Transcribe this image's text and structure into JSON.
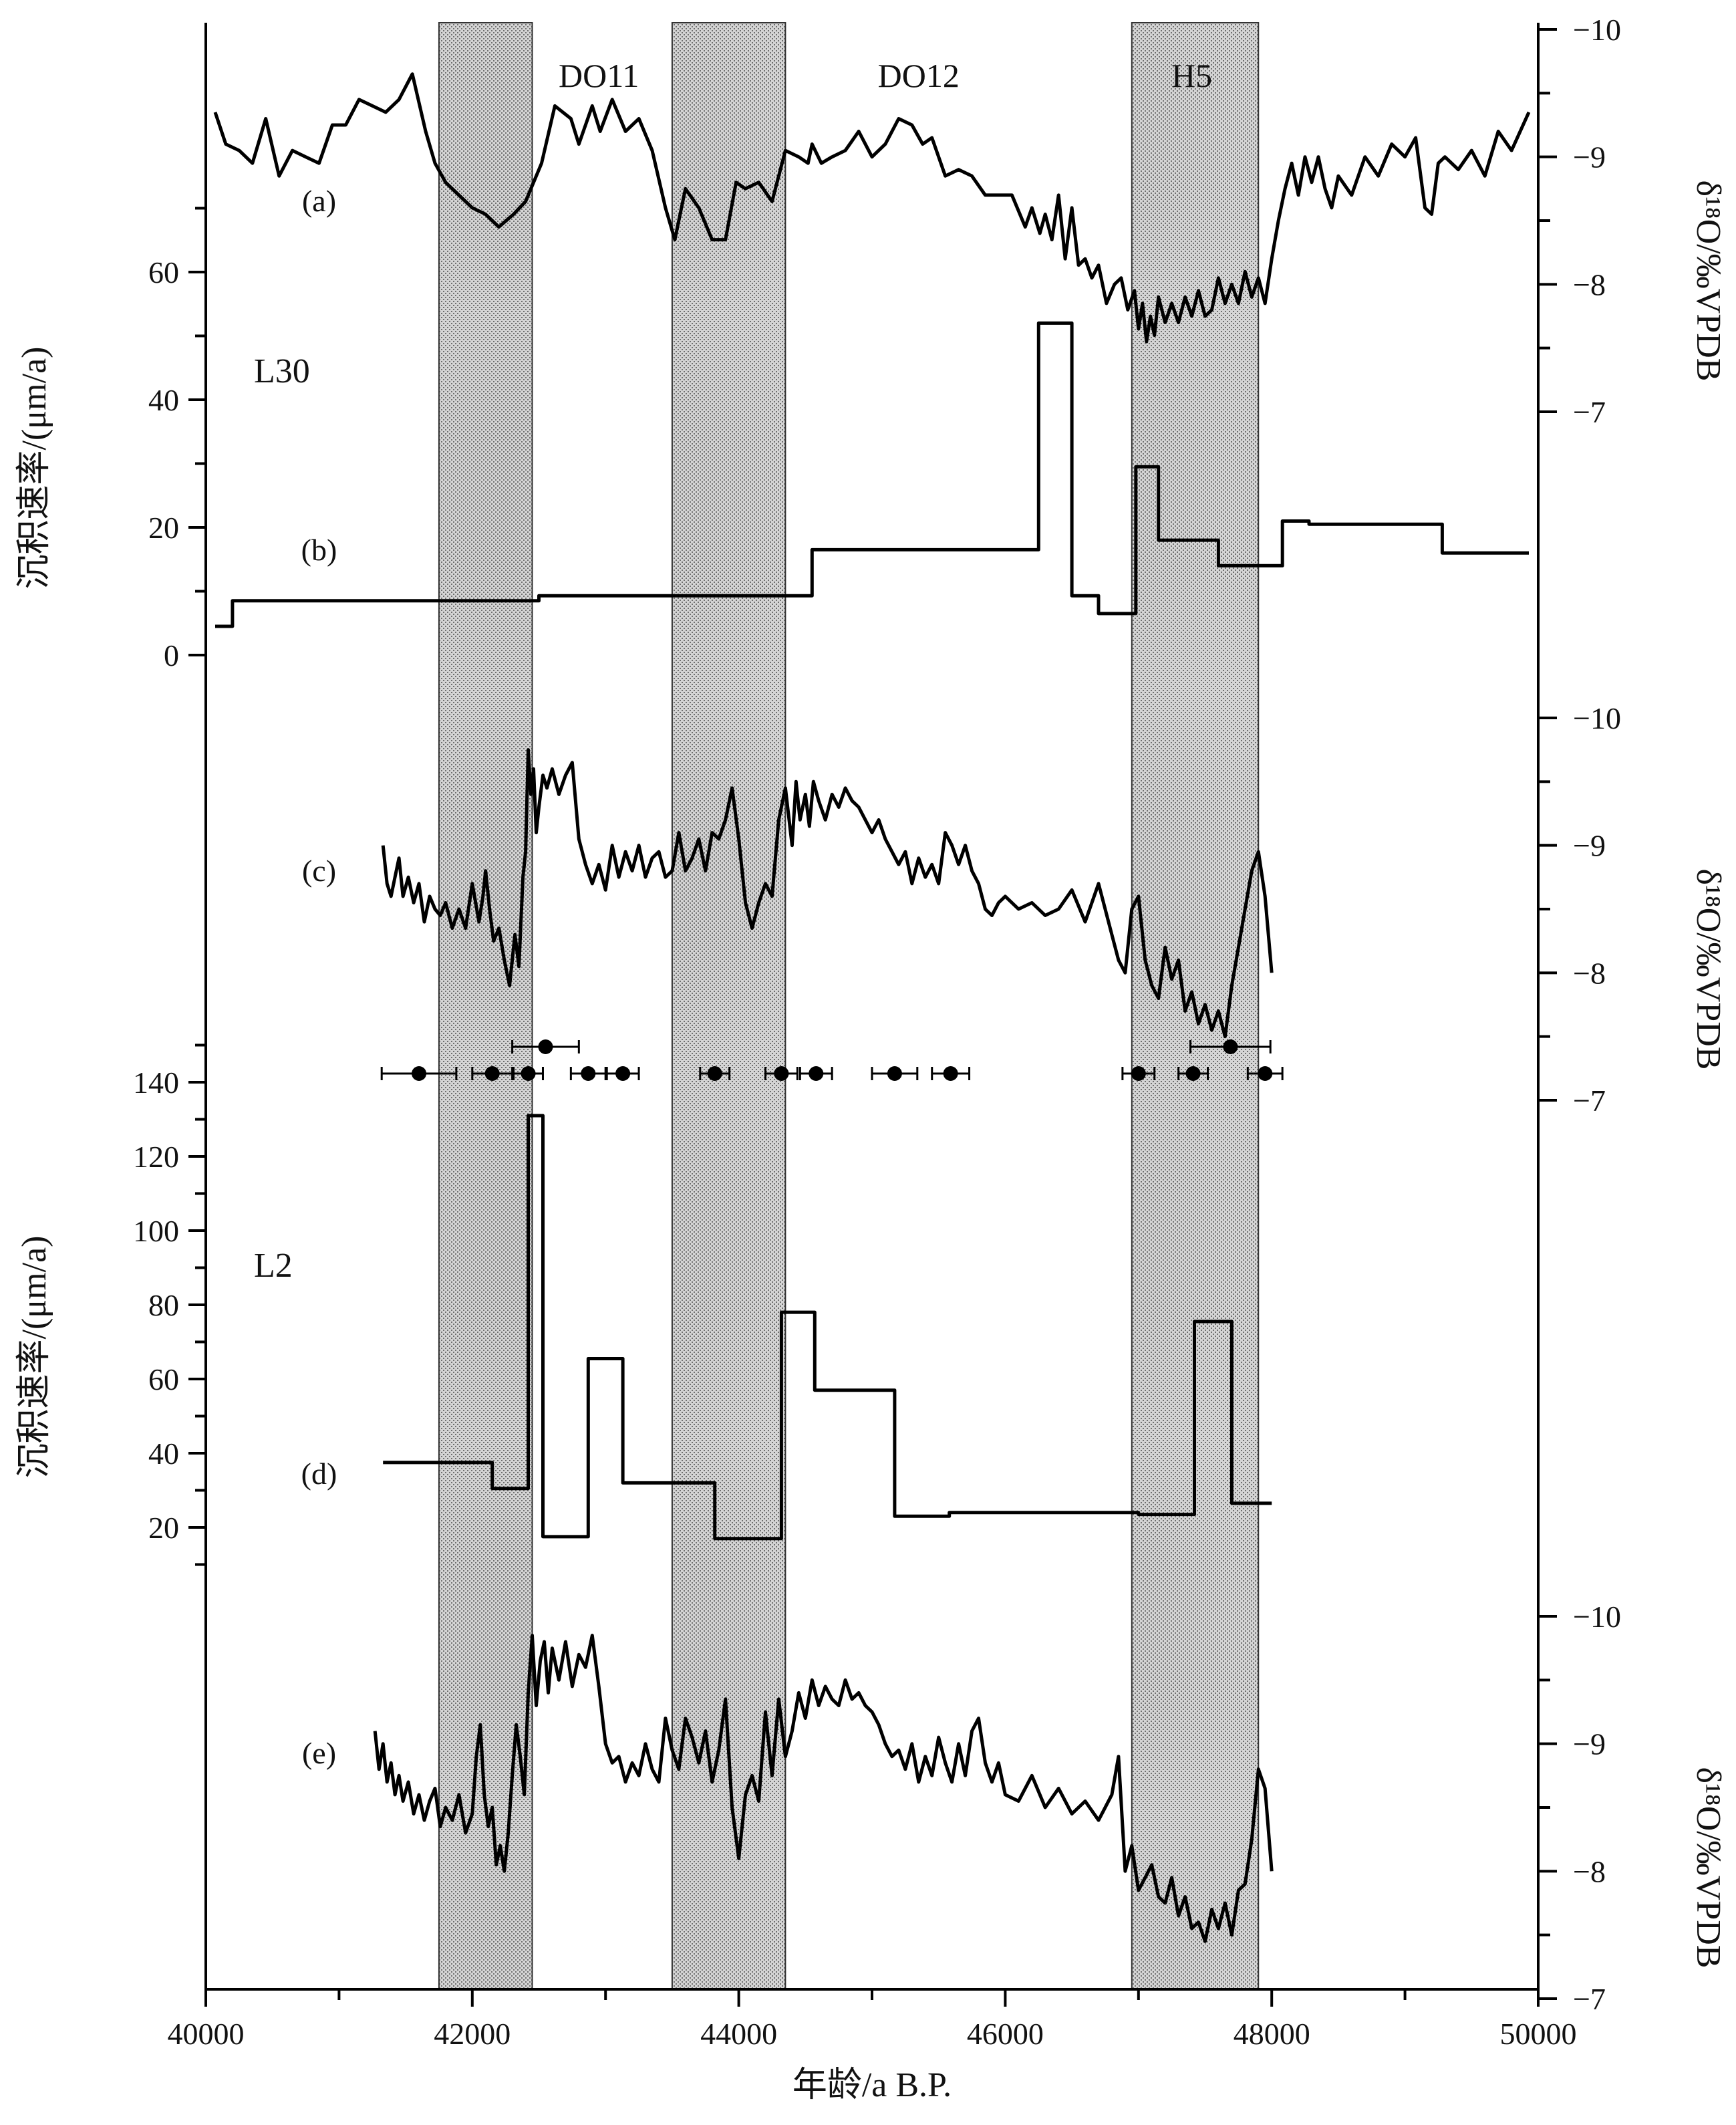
{
  "chart_data": {
    "type": "line",
    "xlabel": "年龄/a B.P.",
    "xlim": [
      40000,
      50000
    ],
    "x_ticks": [
      "40000",
      "42000",
      "44000",
      "46000",
      "48000",
      "50000"
    ],
    "left_axis_title_top": "沉积速率/(μm/a)",
    "left_axis_title_bottom": "沉积速率/(μm/a)",
    "right_axis_title": "δ¹⁸O/‰VPDB",
    "right_axis_sup": "18",
    "left_top_ticks": [
      "0",
      "20",
      "40",
      "60"
    ],
    "left_bottom_ticks": [
      "20",
      "40",
      "60",
      "80",
      "100",
      "120",
      "140"
    ],
    "right_ticks": [
      "−10",
      "−9",
      "−8",
      "−7"
    ],
    "site_labels": [
      "L30",
      "L2"
    ],
    "panel_labels": [
      "(a)",
      "(b)",
      "(c)",
      "(d)",
      "(e)"
    ],
    "shaded_bands": [
      {
        "label": "",
        "x": [
          41750,
          42450
        ]
      },
      {
        "label": "",
        "x": [
          43500,
          44350
        ]
      },
      {
        "label": "H5",
        "x": [
          46950,
          47900
        ]
      }
    ],
    "interval_labels": [
      {
        "label": "DO11",
        "x": 42950
      },
      {
        "label": "DO12",
        "x": 45350
      },
      {
        "label": "H5",
        "x": 47400
      }
    ],
    "series": [
      {
        "id": "a",
        "kind": "d18O",
        "ylim": [
          -10,
          -7
        ],
        "x": [
          40070,
          40150,
          40250,
          40350,
          40450,
          40550,
          40650,
          40750,
          40850,
          40950,
          41050,
          41150,
          41250,
          41350,
          41450,
          41550,
          41650,
          41720,
          41800,
          41900,
          42000,
          42100,
          42200,
          42310,
          42400,
          42520,
          42620,
          42740,
          42800,
          42900,
          42960,
          43050,
          43150,
          43250,
          43350,
          43450,
          43520,
          43600,
          43700,
          43800,
          43900,
          43980,
          44050,
          44150,
          44250,
          44350,
          44450,
          44520,
          44550,
          44620,
          44700,
          44800,
          44900,
          45000,
          45100,
          45200,
          45300,
          45380,
          45450,
          45550,
          45650,
          45750,
          45850,
          45950,
          46050,
          46150,
          46200,
          46260,
          46300,
          46350,
          46400,
          46450,
          46500,
          46550,
          46600,
          46650,
          46700,
          46760,
          46820,
          46870,
          46920,
          46970,
          47000,
          47030,
          47060,
          47090,
          47120,
          47150,
          47200,
          47250,
          47300,
          47350,
          47400,
          47450,
          47500,
          47550,
          47600,
          47650,
          47700,
          47750,
          47800,
          47850,
          47900,
          47950,
          48000,
          48050,
          48100,
          48150,
          48200,
          48250,
          48300,
          48350,
          48400,
          48450,
          48500,
          48600,
          48700,
          48800,
          48900,
          49000,
          49080,
          49150,
          49200,
          49250,
          49300,
          49400,
          49500,
          49600,
          49700,
          49800,
          49930
        ],
        "y": [
          -9.35,
          -9.1,
          -9.05,
          -8.95,
          -9.3,
          -8.85,
          -9.05,
          -9.0,
          -8.95,
          -9.25,
          -9.25,
          -9.45,
          -9.4,
          -9.35,
          -9.45,
          -9.65,
          -9.2,
          -8.95,
          -8.8,
          -8.7,
          -8.6,
          -8.55,
          -8.45,
          -8.55,
          -8.65,
          -8.95,
          -9.4,
          -9.3,
          -9.1,
          -9.4,
          -9.2,
          -9.45,
          -9.2,
          -9.3,
          -9.05,
          -8.6,
          -8.35,
          -8.75,
          -8.6,
          -8.35,
          -8.35,
          -8.8,
          -8.75,
          -8.8,
          -8.65,
          -9.05,
          -9.0,
          -8.95,
          -9.1,
          -8.95,
          -9.0,
          -9.05,
          -9.2,
          -9.0,
          -9.1,
          -9.3,
          -9.25,
          -9.1,
          -9.15,
          -8.85,
          -8.9,
          -8.85,
          -8.7,
          -8.7,
          -8.7,
          -8.45,
          -8.6,
          -8.4,
          -8.55,
          -8.35,
          -8.7,
          -8.2,
          -8.6,
          -8.15,
          -8.2,
          -8.05,
          -8.15,
          -7.85,
          -8.0,
          -8.05,
          -7.8,
          -7.95,
          -7.65,
          -7.85,
          -7.55,
          -7.75,
          -7.6,
          -7.9,
          -7.7,
          -7.85,
          -7.7,
          -7.9,
          -7.75,
          -7.95,
          -7.75,
          -7.8,
          -8.05,
          -7.85,
          -8.0,
          -7.85,
          -8.1,
          -7.9,
          -8.05,
          -7.85,
          -8.2,
          -8.5,
          -8.75,
          -8.95,
          -8.7,
          -9.0,
          -8.8,
          -9.0,
          -8.75,
          -8.6,
          -8.85,
          -8.7,
          -9.0,
          -8.85,
          -9.1,
          -9.0,
          -9.15,
          -8.6,
          -8.55,
          -8.95,
          -9.0,
          -8.9,
          -9.05,
          -8.85,
          -9.2,
          -9.05,
          -9.35
        ],
        "label_x": 40850,
        "label_y": -8.65
      },
      {
        "id": "b",
        "kind": "rate",
        "ylim": [
          0,
          60
        ],
        "step": true,
        "x": [
          40070,
          40200,
          40200,
          42500,
          42500,
          44550,
          44550,
          46250,
          46250,
          46500,
          46500,
          46700,
          46700,
          46980,
          46980,
          47150,
          47150,
          47600,
          47600,
          48080,
          48080,
          48280,
          48280,
          49280,
          49280,
          49930
        ],
        "y": [
          4.5,
          4.5,
          8.5,
          8.5,
          9.3,
          9.3,
          16.5,
          16.5,
          52,
          52,
          9.3,
          9.3,
          6.5,
          6.5,
          29.5,
          29.5,
          18,
          18,
          14,
          14,
          21,
          21,
          20.5,
          20.5,
          16,
          16
        ],
        "label_x": 40850,
        "label_y": 16.5
      },
      {
        "id": "c",
        "kind": "d18O",
        "ylim": [
          -10,
          -7
        ],
        "x": [
          41330,
          41360,
          41390,
          41420,
          41450,
          41480,
          41520,
          41560,
          41600,
          41640,
          41680,
          41720,
          41760,
          41800,
          41850,
          41900,
          41950,
          42000,
          42050,
          42080,
          42100,
          42130,
          42160,
          42200,
          42240,
          42280,
          42320,
          42350,
          42380,
          42400,
          42420,
          42440,
          42460,
          42480,
          42500,
          42530,
          42560,
          42600,
          42650,
          42700,
          42750,
          42800,
          42850,
          42900,
          42950,
          43000,
          43050,
          43100,
          43150,
          43200,
          43250,
          43300,
          43350,
          43400,
          43450,
          43500,
          43550,
          43600,
          43650,
          43700,
          43750,
          43800,
          43850,
          43900,
          43950,
          44000,
          44050,
          44100,
          44150,
          44200,
          44250,
          44300,
          44350,
          44400,
          44430,
          44460,
          44500,
          44530,
          44560,
          44600,
          44650,
          44700,
          44750,
          44800,
          44850,
          44900,
          44950,
          45000,
          45050,
          45100,
          45150,
          45200,
          45250,
          45300,
          45350,
          45400,
          45450,
          45500,
          45550,
          45600,
          45650,
          45700,
          45750,
          45800,
          45850,
          45900,
          45950,
          46000,
          46100,
          46200,
          46300,
          46400,
          46500,
          46600,
          46700,
          46800,
          46850,
          46900,
          46950,
          47000,
          47050,
          47100,
          47150,
          47200,
          47250,
          47300,
          47350,
          47400,
          47450,
          47500,
          47550,
          47600,
          47650,
          47700,
          47750,
          47800,
          47850,
          47900,
          47950,
          48000
        ],
        "y": [
          -9.0,
          -8.7,
          -8.6,
          -8.75,
          -8.9,
          -8.6,
          -8.75,
          -8.55,
          -8.7,
          -8.4,
          -8.6,
          -8.5,
          -8.45,
          -8.55,
          -8.35,
          -8.5,
          -8.35,
          -8.7,
          -8.4,
          -8.6,
          -8.8,
          -8.5,
          -8.25,
          -8.35,
          -8.1,
          -7.9,
          -8.3,
          -8.05,
          -8.75,
          -8.95,
          -9.75,
          -9.4,
          -9.6,
          -9.1,
          -9.3,
          -9.55,
          -9.45,
          -9.6,
          -9.4,
          -9.55,
          -9.65,
          -9.05,
          -8.85,
          -8.7,
          -8.85,
          -8.65,
          -9.0,
          -8.75,
          -8.95,
          -8.8,
          -9.0,
          -8.75,
          -8.9,
          -8.95,
          -8.75,
          -8.8,
          -9.1,
          -8.8,
          -8.9,
          -9.05,
          -8.8,
          -9.1,
          -9.05,
          -9.2,
          -9.45,
          -9.05,
          -8.55,
          -8.35,
          -8.55,
          -8.7,
          -8.6,
          -9.2,
          -9.45,
          -9.0,
          -9.5,
          -9.2,
          -9.4,
          -9.15,
          -9.5,
          -9.35,
          -9.2,
          -9.4,
          -9.3,
          -9.45,
          -9.35,
          -9.3,
          -9.2,
          -9.1,
          -9.2,
          -9.05,
          -8.95,
          -8.85,
          -8.95,
          -8.7,
          -8.9,
          -8.75,
          -8.85,
          -8.7,
          -9.1,
          -9.0,
          -8.85,
          -9.0,
          -8.8,
          -8.7,
          -8.5,
          -8.45,
          -8.55,
          -8.6,
          -8.5,
          -8.55,
          -8.45,
          -8.5,
          -8.65,
          -8.4,
          -8.7,
          -8.3,
          -8.1,
          -8.0,
          -8.5,
          -8.6,
          -8.1,
          -7.9,
          -7.8,
          -8.2,
          -7.95,
          -8.1,
          -7.7,
          -7.85,
          -7.6,
          -7.75,
          -7.55,
          -7.7,
          -7.5,
          -7.9,
          -8.2,
          -8.5,
          -8.8,
          -8.95,
          -8.6,
          -8.0
        ],
        "label_x": 40850,
        "label_y": -8.75
      },
      {
        "id": "d",
        "kind": "rate",
        "ylim": [
          10,
          150
        ],
        "step": true,
        "x": [
          41330,
          42150,
          42150,
          42420,
          42420,
          42530,
          42530,
          42870,
          42870,
          43130,
          43130,
          43820,
          43820,
          44320,
          44320,
          44570,
          44570,
          45170,
          45170,
          45580,
          45580,
          47000,
          47000,
          47420,
          47420,
          47700,
          47700,
          48000
        ],
        "y": [
          37.5,
          37.5,
          30.5,
          30.5,
          131,
          131,
          17.5,
          17.5,
          65.5,
          65.5,
          32,
          32,
          17,
          17,
          78,
          78,
          57,
          57,
          23,
          23,
          24,
          24,
          23.5,
          23.5,
          75.5,
          75.5,
          26.5,
          26.5
        ],
        "label_x": 40850,
        "label_y": 33
      },
      {
        "id": "e",
        "kind": "d18O",
        "ylim": [
          -10,
          -7
        ],
        "x": [
          41270,
          41300,
          41330,
          41360,
          41390,
          41420,
          41450,
          41480,
          41520,
          41560,
          41600,
          41640,
          41680,
          41720,
          41760,
          41800,
          41850,
          41900,
          41950,
          42000,
          42030,
          42060,
          42090,
          42120,
          42150,
          42180,
          42210,
          42240,
          42270,
          42300,
          42330,
          42360,
          42390,
          42420,
          42450,
          42480,
          42510,
          42540,
          42570,
          42600,
          42650,
          42700,
          42750,
          42800,
          42850,
          42900,
          42950,
          43000,
          43050,
          43100,
          43150,
          43200,
          43250,
          43300,
          43350,
          43400,
          43450,
          43500,
          43550,
          43600,
          43650,
          43700,
          43750,
          43800,
          43850,
          43900,
          43950,
          44000,
          44050,
          44100,
          44150,
          44200,
          44250,
          44300,
          44350,
          44400,
          44450,
          44500,
          44550,
          44600,
          44650,
          44700,
          44750,
          44800,
          44850,
          44900,
          44950,
          45000,
          45050,
          45100,
          45150,
          45200,
          45250,
          45300,
          45350,
          45400,
          45450,
          45500,
          45550,
          45600,
          45650,
          45700,
          45750,
          45800,
          45850,
          45900,
          45950,
          46000,
          46100,
          46200,
          46300,
          46400,
          46500,
          46600,
          46700,
          46800,
          46850,
          46900,
          46950,
          47000,
          47050,
          47100,
          47150,
          47200,
          47250,
          47300,
          47350,
          47400,
          47450,
          47500,
          47550,
          47600,
          47650,
          47700,
          47750,
          47800,
          47850,
          47900,
          47950,
          48000
        ],
        "y": [
          -9.1,
          -8.8,
          -9.0,
          -8.7,
          -8.85,
          -8.6,
          -8.75,
          -8.55,
          -8.7,
          -8.45,
          -8.6,
          -8.4,
          -8.55,
          -8.65,
          -8.35,
          -8.5,
          -8.4,
          -8.6,
          -8.3,
          -8.45,
          -8.9,
          -9.15,
          -8.6,
          -8.35,
          -8.5,
          -8.05,
          -8.2,
          -8.0,
          -8.3,
          -8.75,
          -9.15,
          -8.9,
          -8.6,
          -9.4,
          -9.85,
          -9.3,
          -9.65,
          -9.8,
          -9.4,
          -9.75,
          -9.5,
          -9.8,
          -9.45,
          -9.7,
          -9.6,
          -9.85,
          -9.45,
          -9.0,
          -8.85,
          -8.9,
          -8.7,
          -8.85,
          -8.75,
          -9.0,
          -8.8,
          -8.7,
          -9.2,
          -8.95,
          -8.8,
          -9.2,
          -9.05,
          -8.85,
          -9.1,
          -8.7,
          -8.95,
          -9.35,
          -8.5,
          -8.1,
          -8.6,
          -8.75,
          -8.55,
          -9.25,
          -8.75,
          -9.35,
          -8.9,
          -9.1,
          -9.4,
          -9.2,
          -9.5,
          -9.3,
          -9.45,
          -9.35,
          -9.3,
          -9.5,
          -9.35,
          -9.4,
          -9.3,
          -9.25,
          -9.15,
          -9.0,
          -8.9,
          -8.95,
          -8.8,
          -9.0,
          -8.7,
          -8.9,
          -8.75,
          -9.05,
          -8.85,
          -8.7,
          -9.0,
          -8.75,
          -9.1,
          -9.2,
          -8.85,
          -8.7,
          -8.85,
          -8.6,
          -8.55,
          -8.75,
          -8.5,
          -8.65,
          -8.45,
          -8.55,
          -8.4,
          -8.6,
          -8.9,
          -8.0,
          -8.2,
          -7.85,
          -7.95,
          -8.05,
          -7.8,
          -7.75,
          -7.95,
          -7.65,
          -7.8,
          -7.55,
          -7.6,
          -7.45,
          -7.7,
          -7.55,
          -7.75,
          -7.5,
          -7.85,
          -7.9,
          -8.25,
          -8.8,
          -8.65,
          -8.0
        ],
        "label_x": 40850,
        "label_y": -8.95
      }
    ],
    "age_points": [
      {
        "x": 41600,
        "err": 280,
        "row": 1
      },
      {
        "x": 42150,
        "err": 150,
        "row": 1
      },
      {
        "x": 42420,
        "err": 110,
        "row": 1
      },
      {
        "x": 42550,
        "err": 250,
        "row": 0
      },
      {
        "x": 42870,
        "err": 130,
        "row": 1
      },
      {
        "x": 43130,
        "err": 120,
        "row": 1
      },
      {
        "x": 43820,
        "err": 110,
        "row": 1
      },
      {
        "x": 44320,
        "err": 120,
        "row": 1
      },
      {
        "x": 44580,
        "err": 120,
        "row": 1
      },
      {
        "x": 45170,
        "err": 170,
        "row": 1
      },
      {
        "x": 45590,
        "err": 140,
        "row": 1
      },
      {
        "x": 47000,
        "err": 120,
        "row": 1
      },
      {
        "x": 47410,
        "err": 110,
        "row": 1
      },
      {
        "x": 47690,
        "err": 300,
        "row": 0
      },
      {
        "x": 47950,
        "err": 130,
        "row": 1
      }
    ],
    "grid": false,
    "legend": "none"
  }
}
